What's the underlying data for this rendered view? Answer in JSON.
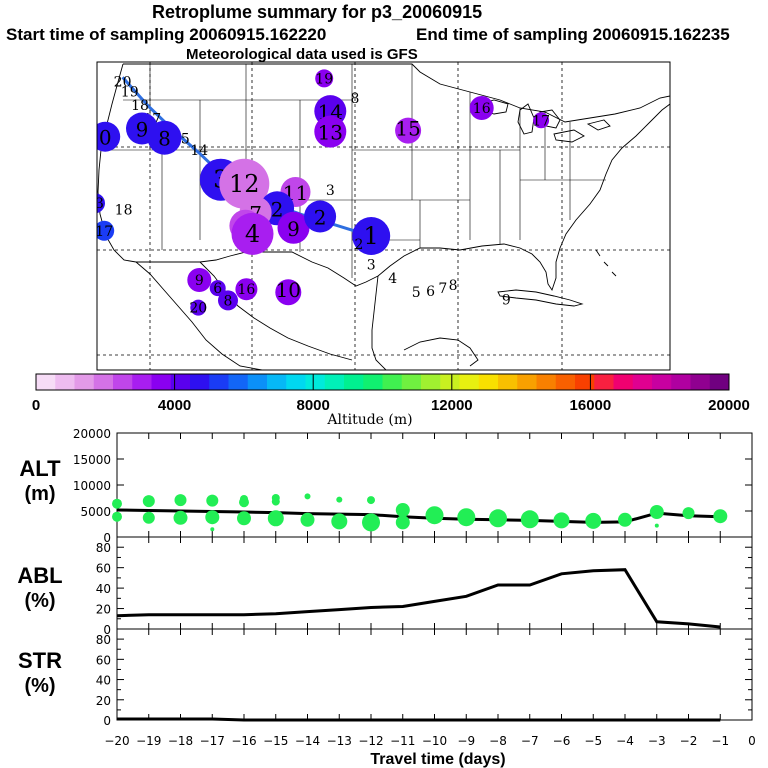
{
  "header": {
    "title": "Retroplume summary for p3_20060915",
    "start_label": "Start time of sampling 20060915.162220",
    "end_label": "End time of sampling 20060915.162235",
    "met_label": "Meteorological data used is GFS"
  },
  "colors": {
    "trajectory": "#2f6fe0",
    "alt_dots": "#22ee55",
    "lines": "#000000",
    "colorbar": [
      "#f6dcf6",
      "#eebcf0",
      "#e39ae8",
      "#d472e6",
      "#c046ea",
      "#a81ef0",
      "#8a00f0",
      "#5a00ee",
      "#2e10f0",
      "#1a3cf5",
      "#1266f7",
      "#0b90f8",
      "#06b8f6",
      "#00d8f0",
      "#00eadc",
      "#00f0b8",
      "#00f090",
      "#10f070",
      "#40f050",
      "#70f040",
      "#a0f030",
      "#c8f020",
      "#e8f010",
      "#f8e000",
      "#f8c000",
      "#f8a000",
      "#f88000",
      "#f86000",
      "#f84000",
      "#f82040",
      "#f00070",
      "#e00090",
      "#c800a0",
      "#b000a0",
      "#900090",
      "#700080"
    ]
  },
  "map": {
    "plume_points": [
      {
        "label": "20",
        "lon": -123.5,
        "lat": 48.2,
        "alt": 0,
        "size": 0
      },
      {
        "label": "19",
        "lon": -122.8,
        "lat": 47.2,
        "alt": 0,
        "size": 0
      },
      {
        "label": "18",
        "lon": -121.8,
        "lat": 45.9,
        "alt": 0,
        "size": 0
      },
      {
        "label": "17",
        "lon": -120.6,
        "lat": 44.6,
        "alt": 0,
        "size": 0
      },
      {
        "label": "16",
        "lon": -119.2,
        "lat": 43.5,
        "alt": 0,
        "size": 0
      },
      {
        "label": "15",
        "lon": -117.8,
        "lat": 42.6,
        "alt": 0,
        "size": 0
      },
      {
        "label": "14",
        "lon": -116.0,
        "lat": 41.5,
        "alt": 0,
        "size": 0
      },
      {
        "label": "9",
        "lon": -121.6,
        "lat": 43.6,
        "alt": 4600,
        "size": 16
      },
      {
        "label": "8",
        "lon": -119.4,
        "lat": 42.7,
        "alt": 4800,
        "size": 17
      },
      {
        "label": "0",
        "lon": -125.2,
        "lat": 42.8,
        "alt": 4600,
        "size": 15
      },
      {
        "label": "3",
        "lon": -113.9,
        "lat": 38.6,
        "alt": 4600,
        "size": 21
      },
      {
        "label": "12",
        "lon": -111.6,
        "lat": 38.2,
        "alt": 1700,
        "size": 25
      },
      {
        "label": "11",
        "lon": -106.6,
        "lat": 37.4,
        "alt": 2600,
        "size": 15
      },
      {
        "label": "2",
        "lon": -108.4,
        "lat": 35.8,
        "alt": 4600,
        "size": 17
      },
      {
        "label": "7",
        "lon": -110.5,
        "lat": 35.4,
        "alt": 2200,
        "size": 16
      },
      {
        "label": "5",
        "lon": -111.5,
        "lat": 34.1,
        "alt": 2500,
        "size": 16
      },
      {
        "label": "4",
        "lon": -110.8,
        "lat": 33.3,
        "alt": 3000,
        "size": 21
      },
      {
        "label": "9",
        "lon": -106.8,
        "lat": 33.9,
        "alt": 3400,
        "size": 16
      },
      {
        "label": "2",
        "lon": -104.2,
        "lat": 35.0,
        "alt": 4800,
        "size": 16
      },
      {
        "label": "1",
        "lon": -99.2,
        "lat": 33.1,
        "alt": 4800,
        "size": 19
      },
      {
        "label": "13",
        "lon": -126.2,
        "lat": 36.3,
        "alt": 4800,
        "size": 10
      },
      {
        "label": "18",
        "lon": -123.4,
        "lat": 35.7,
        "alt": 0,
        "size": 0
      },
      {
        "label": "17",
        "lon": -125.3,
        "lat": 33.6,
        "alt": 5500,
        "size": 10
      },
      {
        "label": "9",
        "lon": -116.0,
        "lat": 28.8,
        "alt": 3700,
        "size": 12
      },
      {
        "label": "6",
        "lon": -114.2,
        "lat": 28.0,
        "alt": 4200,
        "size": 8
      },
      {
        "label": "16",
        "lon": -111.4,
        "lat": 27.9,
        "alt": 3700,
        "size": 11
      },
      {
        "label": "8",
        "lon": -113.2,
        "lat": 26.8,
        "alt": 4300,
        "size": 10
      },
      {
        "label": "10",
        "lon": -107.3,
        "lat": 27.6,
        "alt": 3800,
        "size": 13
      },
      {
        "label": "20",
        "lon": -116.1,
        "lat": 26.1,
        "alt": 4200,
        "size": 8
      },
      {
        "label": "19",
        "lon": -103.8,
        "lat": 48.5,
        "alt": 3700,
        "size": 9
      },
      {
        "label": "14",
        "lon": -103.2,
        "lat": 45.3,
        "alt": 3900,
        "size": 16
      },
      {
        "label": "13",
        "lon": -103.2,
        "lat": 43.3,
        "alt": 3800,
        "size": 16
      },
      {
        "label": "8",
        "lon": -100.8,
        "lat": 46.6,
        "alt": 0,
        "size": 0
      },
      {
        "label": "15",
        "lon": -95.6,
        "lat": 43.4,
        "alt": 3300,
        "size": 13
      },
      {
        "label": "16",
        "lon": -88.4,
        "lat": 45.6,
        "alt": 3700,
        "size": 12
      },
      {
        "label": "17",
        "lon": -82.6,
        "lat": 44.4,
        "alt": 3600,
        "size": 8
      },
      {
        "label": "3",
        "lon": -103.2,
        "lat": 37.6,
        "alt": 0,
        "size": 0
      },
      {
        "label": "2",
        "lon": -100.4,
        "lat": 32.3,
        "alt": 0,
        "size": 0
      },
      {
        "label": "3",
        "lon": -99.2,
        "lat": 30.3,
        "alt": 0,
        "size": 0
      },
      {
        "label": "4",
        "lon": -97.1,
        "lat": 29.0,
        "alt": 0,
        "size": 0
      },
      {
        "label": "5",
        "lon": -94.8,
        "lat": 27.6,
        "alt": 0,
        "size": 0
      },
      {
        "label": "6",
        "lon": -93.4,
        "lat": 27.7,
        "alt": 0,
        "size": 0
      },
      {
        "label": "7",
        "lon": -92.2,
        "lat": 28.0,
        "alt": 0,
        "size": 0
      },
      {
        "label": "8",
        "lon": -91.2,
        "lat": 28.3,
        "alt": 0,
        "size": 0
      },
      {
        "label": "9",
        "lon": -86.0,
        "lat": 26.9,
        "alt": 0,
        "size": 0
      }
    ],
    "trajectory": [
      {
        "lon": -123.5,
        "lat": 48.6
      },
      {
        "lon": -121.0,
        "lat": 45.8
      },
      {
        "lon": -118.5,
        "lat": 43.4
      },
      {
        "lon": -116.0,
        "lat": 41.2
      },
      {
        "lon": -113.5,
        "lat": 38.8
      },
      {
        "lon": -110.0,
        "lat": 36.6
      },
      {
        "lon": -106.0,
        "lat": 35.2
      },
      {
        "lon": -101.5,
        "lat": 33.8
      },
      {
        "lon": -99.2,
        "lat": 33.1
      }
    ]
  },
  "colorbar": {
    "min": 0,
    "max": 20000,
    "tick_labels": [
      "0",
      "4000",
      "8000",
      "12000",
      "16000",
      "20000"
    ],
    "tick_values": [
      0,
      4000,
      8000,
      12000,
      16000,
      20000
    ],
    "label": "Altitude (m)"
  },
  "chart_data": [
    {
      "type": "line",
      "name": "ALT",
      "ylabel_line1": "ALT",
      "ylabel_line2": "(m)",
      "x": [
        -20,
        -19,
        -18,
        -17,
        -16,
        -15,
        -14,
        -13,
        -12,
        -11,
        -10,
        -9,
        -8,
        -7,
        -6,
        -5,
        -4,
        -3,
        -2,
        -1
      ],
      "values": [
        5200,
        5100,
        5000,
        4900,
        4800,
        4700,
        4500,
        4400,
        4300,
        3900,
        3600,
        3400,
        3300,
        3200,
        3000,
        2800,
        2900,
        4600,
        4100,
        3900
      ],
      "scatter": [
        {
          "x": -20,
          "y": 6400,
          "r": 5
        },
        {
          "x": -20,
          "y": 3900,
          "r": 5
        },
        {
          "x": -19,
          "y": 6900,
          "r": 6
        },
        {
          "x": -19,
          "y": 3700,
          "r": 6
        },
        {
          "x": -18,
          "y": 7100,
          "r": 6
        },
        {
          "x": -18,
          "y": 3700,
          "r": 7
        },
        {
          "x": -17,
          "y": 7000,
          "r": 6
        },
        {
          "x": -17,
          "y": 3800,
          "r": 7
        },
        {
          "x": -17,
          "y": 1500,
          "r": 2
        },
        {
          "x": -16,
          "y": 7300,
          "r": 4
        },
        {
          "x": -16,
          "y": 6700,
          "r": 5
        },
        {
          "x": -16,
          "y": 3600,
          "r": 7
        },
        {
          "x": -15,
          "y": 7500,
          "r": 4
        },
        {
          "x": -15,
          "y": 6800,
          "r": 4
        },
        {
          "x": -15,
          "y": 3600,
          "r": 8
        },
        {
          "x": -14,
          "y": 7800,
          "r": 3
        },
        {
          "x": -14,
          "y": 3300,
          "r": 7
        },
        {
          "x": -13,
          "y": 7200,
          "r": 3
        },
        {
          "x": -13,
          "y": 3000,
          "r": 8
        },
        {
          "x": -12,
          "y": 7100,
          "r": 4
        },
        {
          "x": -12,
          "y": 2800,
          "r": 9
        },
        {
          "x": -11,
          "y": 5200,
          "r": 7
        },
        {
          "x": -11,
          "y": 2800,
          "r": 7
        },
        {
          "x": -10,
          "y": 4200,
          "r": 9
        },
        {
          "x": -9,
          "y": 3800,
          "r": 9
        },
        {
          "x": -8,
          "y": 3600,
          "r": 9
        },
        {
          "x": -7,
          "y": 3400,
          "r": 9
        },
        {
          "x": -6,
          "y": 3200,
          "r": 8
        },
        {
          "x": -5,
          "y": 3100,
          "r": 8
        },
        {
          "x": -4,
          "y": 3300,
          "r": 7
        },
        {
          "x": -3,
          "y": 4800,
          "r": 7
        },
        {
          "x": -3,
          "y": 2200,
          "r": 2
        },
        {
          "x": -2,
          "y": 4600,
          "r": 6
        },
        {
          "x": -1,
          "y": 4000,
          "r": 7
        }
      ],
      "ylim": [
        0,
        20000
      ],
      "yticks": [
        "0",
        "5000",
        "10000",
        "15000",
        "20000"
      ],
      "ytick_values": [
        0,
        5000,
        10000,
        15000,
        20000
      ]
    },
    {
      "type": "line",
      "name": "ABL",
      "ylabel_line1": "ABL",
      "ylabel_line2": "(%)",
      "x": [
        -20,
        -19,
        -18,
        -17,
        -16,
        -15,
        -14,
        -13,
        -12,
        -11,
        -10,
        -9,
        -8,
        -7,
        -6,
        -5,
        -4,
        -3,
        -2,
        -1
      ],
      "values": [
        13,
        14,
        14,
        14,
        14,
        15,
        17,
        19,
        21,
        22,
        27,
        32,
        43,
        43,
        54,
        57,
        58,
        7,
        5,
        2
      ],
      "ylim": [
        0,
        90
      ],
      "yticks": [
        "0",
        "20",
        "40",
        "60",
        "80"
      ],
      "ytick_values": [
        0,
        20,
        40,
        60,
        80
      ],
      "minor_yticks": [
        10,
        30,
        50,
        70
      ]
    },
    {
      "type": "line",
      "name": "STR",
      "ylabel_line1": "STR",
      "ylabel_line2": "(%)",
      "x": [
        -20,
        -19,
        -18,
        -17,
        -16,
        -15,
        -14,
        -13,
        -12,
        -11,
        -10,
        -9,
        -8,
        -7,
        -6,
        -5,
        -4,
        -3,
        -2,
        -1
      ],
      "values": [
        1,
        1,
        1,
        1,
        0,
        0,
        0,
        0,
        0,
        0,
        0,
        0,
        0,
        0,
        0,
        0,
        0,
        0,
        0,
        0
      ],
      "ylim": [
        0,
        90
      ],
      "yticks": [
        "0",
        "20",
        "40",
        "60",
        "80"
      ],
      "ytick_values": [
        0,
        20,
        40,
        60,
        80
      ],
      "minor_yticks": [
        10,
        30,
        50,
        70
      ]
    }
  ],
  "xaxis": {
    "tick_values": [
      -20,
      -19,
      -18,
      -17,
      -16,
      -15,
      -14,
      -13,
      -12,
      -11,
      -10,
      -9,
      -8,
      -7,
      -6,
      -5,
      -4,
      -3,
      -2,
      -1,
      0
    ],
    "tick_labels": [
      "−20",
      "−19",
      "−18",
      "−17",
      "−16",
      "−15",
      "−14",
      "−13",
      "−12",
      "−11",
      "−10",
      "−9",
      "−8",
      "−7",
      "−6",
      "−5",
      "−4",
      "−3",
      "−2",
      "−1",
      "0"
    ],
    "label": "Travel time (days)",
    "min": -20,
    "max": 0
  }
}
